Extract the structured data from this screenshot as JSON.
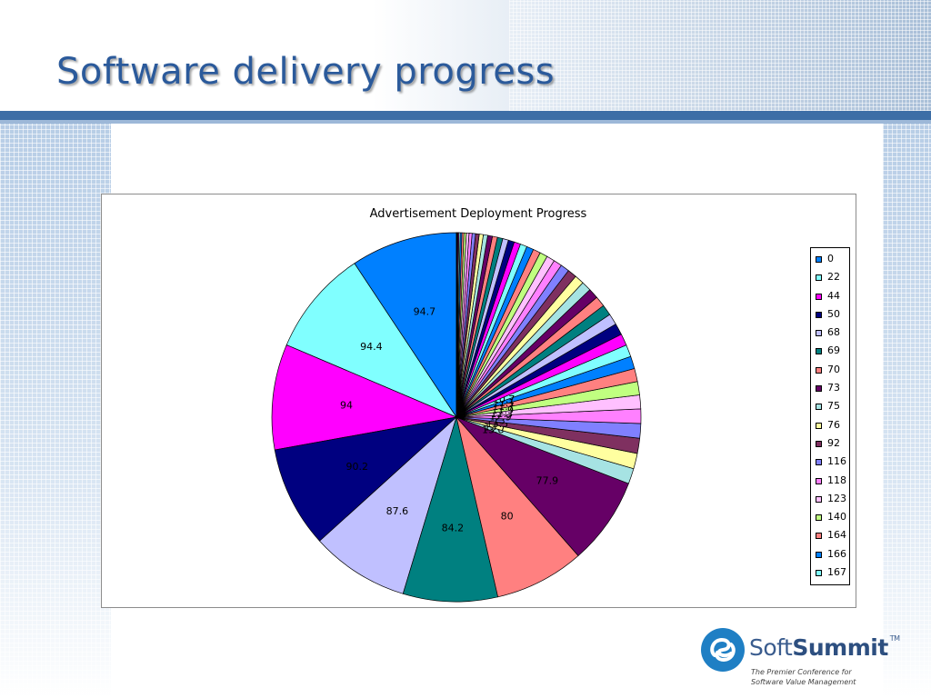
{
  "slide": {
    "title": "Software delivery progress"
  },
  "chart_data": {
    "type": "pie",
    "title": "Advertisement Deployment Progress",
    "legend_position": "right",
    "slices": [
      {
        "label": "0",
        "value": 94.7,
        "color": "#0080ff"
      },
      {
        "label": "22",
        "value": 94.4,
        "color": "#80ffff"
      },
      {
        "label": "44",
        "value": 94,
        "color": "#ff00ff"
      },
      {
        "label": "50",
        "value": 90.2,
        "color": "#000080"
      },
      {
        "label": "68",
        "value": 87.6,
        "color": "#c0c0ff"
      },
      {
        "label": "69",
        "value": 84.2,
        "color": "#008080"
      },
      {
        "label": "70",
        "value": 80,
        "color": "#ff8080"
      },
      {
        "label": "73",
        "value": 77.9,
        "color": "#660066"
      },
      {
        "label": "75",
        "value": 13.8,
        "color": "#a6e3e3"
      },
      {
        "label": "76",
        "value": 13.7,
        "color": "#ffffa0"
      },
      {
        "label": "92",
        "value": 13.5,
        "color": "#7f3060"
      },
      {
        "label": "116",
        "value": 13,
        "color": "#8080ff"
      },
      {
        "label": "118",
        "value": 12.9,
        "color": "#ff80ff"
      },
      {
        "label": "123",
        "value": 12.3,
        "color": "#ffc0ff"
      },
      {
        "label": "140",
        "value": 11.9,
        "color": "#c0ff80"
      },
      {
        "label": "164",
        "value": 11.7,
        "color": "#ff8080"
      },
      {
        "label": "166",
        "value": 11.1,
        "color": "#0080ff"
      },
      {
        "label": "167",
        "value": 10.7,
        "color": "#80ffff"
      },
      {
        "label": "",
        "value": 10.4,
        "color": "#ff00ff"
      },
      {
        "label": "",
        "value": 10.2,
        "color": "#000080"
      },
      {
        "label": "",
        "value": 9.9,
        "color": "#c0c0ff"
      },
      {
        "label": "",
        "value": 9.6,
        "color": "#008080"
      },
      {
        "label": "",
        "value": 9.3,
        "color": "#ff8080"
      },
      {
        "label": "",
        "value": 9.0,
        "color": "#660066"
      },
      {
        "label": "",
        "value": 8.7,
        "color": "#a6e3e3"
      },
      {
        "label": "",
        "value": 8.4,
        "color": "#ffffa0"
      },
      {
        "label": "",
        "value": 8.1,
        "color": "#7f3060"
      },
      {
        "label": "",
        "value": 7.8,
        "color": "#8080ff"
      },
      {
        "label": "",
        "value": 7.5,
        "color": "#ff80ff"
      },
      {
        "label": "",
        "value": 7.2,
        "color": "#ffc0ff"
      },
      {
        "label": "",
        "value": 6.9,
        "color": "#c0ff80"
      },
      {
        "label": "",
        "value": 6.6,
        "color": "#ff8080"
      },
      {
        "label": "",
        "value": 6.3,
        "color": "#0080ff"
      },
      {
        "label": "",
        "value": 6.0,
        "color": "#80ffff"
      },
      {
        "label": "",
        "value": 5.7,
        "color": "#ff00ff"
      },
      {
        "label": "",
        "value": 5.4,
        "color": "#000080"
      },
      {
        "label": "",
        "value": 5.1,
        "color": "#c0c0ff"
      },
      {
        "label": "",
        "value": 4.8,
        "color": "#008080"
      },
      {
        "label": "",
        "value": 4.5,
        "color": "#ff8080"
      },
      {
        "label": "",
        "value": 4.2,
        "color": "#660066"
      },
      {
        "label": "",
        "value": 3.9,
        "color": "#a6e3e3"
      },
      {
        "label": "",
        "value": 3.6,
        "color": "#ffffa0"
      },
      {
        "label": "",
        "value": 3.3,
        "color": "#7f3060"
      },
      {
        "label": "",
        "value": 3.0,
        "color": "#8080ff"
      },
      {
        "label": "",
        "value": 2.7,
        "color": "#ff80ff"
      },
      {
        "label": "",
        "value": 2.4,
        "color": "#ffc0ff"
      },
      {
        "label": "",
        "value": 2.1,
        "color": "#c0ff80"
      },
      {
        "label": "",
        "value": 1.8,
        "color": "#ff8080"
      },
      {
        "label": "",
        "value": 1.5,
        "color": "#0080ff"
      },
      {
        "label": "",
        "value": 1.2,
        "color": "#80ffff"
      },
      {
        "label": "",
        "value": 0.9,
        "color": "#ff00ff"
      },
      {
        "label": "",
        "value": 0.6,
        "color": "#000080"
      },
      {
        "label": "",
        "value": 0.4,
        "color": "#c0c0ff"
      },
      {
        "label": "",
        "value": 0.2,
        "color": "#008080"
      }
    ],
    "visible_data_labels": [
      "94.7",
      "94.4",
      "94",
      "90.2",
      "87.6",
      "84.2",
      "80",
      "77.9",
      "13.8",
      "13.7",
      "13.5",
      "13",
      "12.9",
      "12.3",
      "11.9",
      "11.7",
      "11.1",
      "10.7"
    ]
  },
  "legend": {
    "entries": [
      "0",
      "22",
      "44",
      "50",
      "68",
      "69",
      "70",
      "73",
      "75",
      "76",
      "92",
      "116",
      "118",
      "123",
      "140",
      "164",
      "166",
      "167"
    ]
  },
  "logo": {
    "name_light": "Soft",
    "name_bold": "Summit",
    "trademark": "TM",
    "tagline_line1": "The Premier Conference for",
    "tagline_line2": "Software Value Management",
    "mark_color": "#1f7fc4",
    "accent_colors": [
      "#2b5a9b",
      "#3d6ea6",
      "#9db8d8"
    ]
  }
}
